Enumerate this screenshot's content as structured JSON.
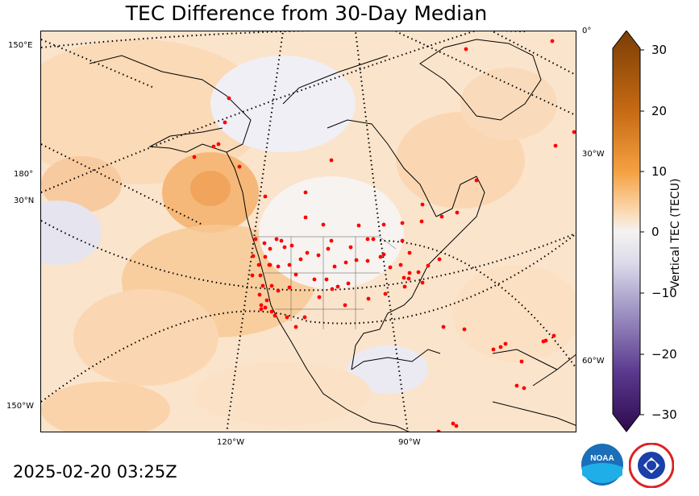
{
  "title": "TEC Difference from 30-Day Median",
  "timestamp": "2025-02-20 03:25Z",
  "lat_labels": [
    "150°E",
    "180°",
    "30°N",
    "150°W"
  ],
  "lon_labels_right": [
    "0°",
    "30°W",
    "60°W"
  ],
  "lon_labels_bottom": [
    "120°W",
    "90°W"
  ],
  "colorbar": {
    "label": "Vertical TEC (TECU)",
    "min": -30,
    "max": 30,
    "ticks": [
      "30",
      "20",
      "10",
      "0",
      "−10",
      "−20",
      "−30"
    ],
    "colors": {
      "high": "#7a3d05",
      "mid_high": "#f4a040",
      "zero": "#f5f3f0",
      "mid_low": "#9e93c3",
      "low": "#2d0a4e"
    }
  },
  "map": {
    "land_outline_color": "#000000",
    "station_color": "#ff0000",
    "background_color": "#fbe6cf"
  },
  "logos": {
    "noaa": "NOAA",
    "nws": "NATIONAL WEATHER SERVICE"
  }
}
